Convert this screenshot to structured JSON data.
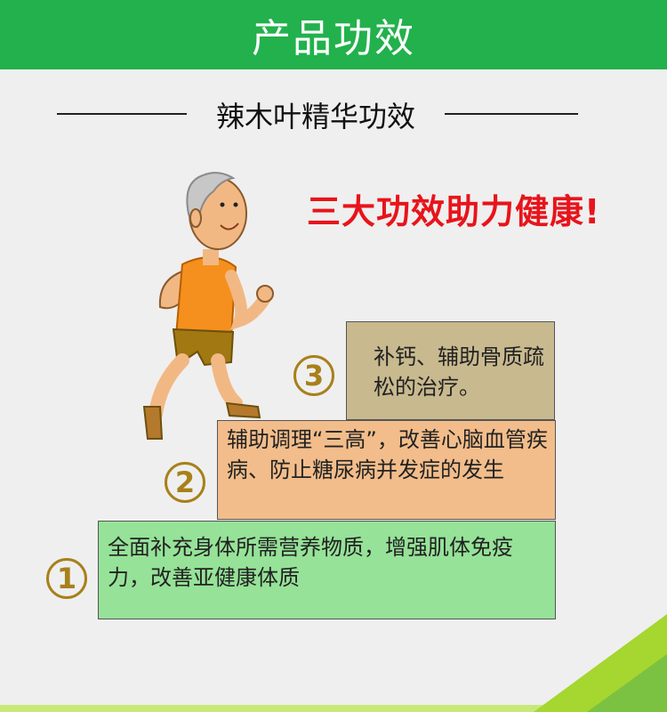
{
  "header": {
    "title": "产品功效"
  },
  "section": {
    "subtitle": "辣木叶精华功效"
  },
  "slogan": "三大功效助力健康!",
  "steps": [
    {
      "number": "1",
      "text": "全面补充身体所需营养物质，增强肌体免疫力，改善亚健康体质"
    },
    {
      "number": "2",
      "text": "辅助调理“三高”，改善心脑血管疾病、防止糖尿病并发症的发生"
    },
    {
      "number": "3",
      "text": "补钙、辅助骨质疏松的治疗。"
    }
  ],
  "colors": {
    "header_green": "#22b14c",
    "slogan_red": "#e8141b",
    "step1_green": "#96e298",
    "step2_orange": "#f2bd8b",
    "step3_tan": "#c8b98f",
    "number_gold": "#a8801a"
  },
  "illustration": {
    "icon": "running-elderly-man-icon"
  }
}
